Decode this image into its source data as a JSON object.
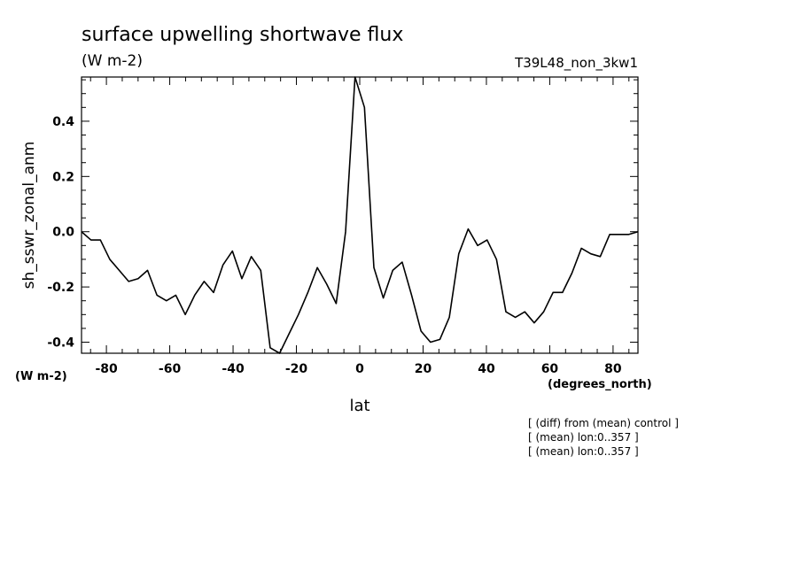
{
  "chart_data": {
    "type": "line",
    "title": "surface upwelling shortwave flux",
    "subtitle": "(W m-2)",
    "run_label": "T39L48_non_3kw1",
    "ylabel": "sh_sswr_zonal_anm",
    "y_units": "(W m-2)",
    "xlabel": "lat",
    "x_units": "(degrees_north)",
    "notes": [
      "[ (diff) from (mean) control ]",
      "[ (mean) lon:0..357 ]",
      "[ (mean) lon:0..357 ]"
    ],
    "x": [
      -87.86,
      -84.88,
      -81.9,
      -78.93,
      -75.95,
      -72.97,
      -69.99,
      -67.01,
      -64.03,
      -61.05,
      -58.08,
      -55.1,
      -52.12,
      -49.14,
      -46.16,
      -43.18,
      -40.21,
      -37.23,
      -34.25,
      -31.27,
      -28.29,
      -25.31,
      -22.34,
      -19.36,
      -16.38,
      -13.4,
      -10.42,
      -7.44,
      -4.47,
      -1.49,
      1.49,
      4.47,
      7.44,
      10.42,
      13.4,
      16.38,
      19.36,
      22.34,
      25.31,
      28.29,
      31.27,
      34.25,
      37.23,
      40.21,
      43.18,
      46.16,
      49.14,
      52.12,
      55.1,
      58.08,
      61.05,
      64.03,
      67.01,
      69.99,
      72.97,
      75.95,
      78.93,
      81.9,
      84.88,
      87.86
    ],
    "series": [
      {
        "color": "#000000",
        "values": [
          0.0,
          -0.03,
          -0.03,
          -0.1,
          -0.14,
          -0.18,
          -0.17,
          -0.14,
          -0.23,
          -0.25,
          -0.23,
          -0.3,
          -0.23,
          -0.18,
          -0.22,
          -0.12,
          -0.07,
          -0.17,
          -0.09,
          -0.14,
          -0.42,
          -0.44,
          -0.37,
          -0.3,
          -0.22,
          -0.13,
          -0.19,
          -0.26,
          0.0,
          0.56,
          0.45,
          -0.13,
          -0.24,
          -0.14,
          -0.11,
          -0.23,
          -0.36,
          -0.4,
          -0.39,
          -0.31,
          -0.08,
          0.01,
          -0.05,
          -0.03,
          -0.1,
          -0.29,
          -0.31,
          -0.29,
          -0.33,
          -0.29,
          -0.22,
          -0.22,
          -0.15,
          -0.06,
          -0.08,
          -0.09,
          -0.01,
          -0.01,
          -0.01,
          0.0
        ]
      }
    ],
    "xlim": [
      -87.86,
      87.86
    ],
    "ylim": [
      -0.44,
      0.56
    ],
    "xticks": [
      -80,
      -60,
      -40,
      -20,
      0,
      20,
      40,
      60,
      80
    ],
    "xminorticks": [
      -85,
      -75,
      -70,
      -65,
      -55,
      -50,
      -45,
      -35,
      -30,
      -25,
      -15,
      -10,
      -5,
      5,
      10,
      15,
      25,
      30,
      35,
      45,
      50,
      55,
      65,
      70,
      75,
      85
    ],
    "yticks": [
      {
        "value": -0.4,
        "label": "-0.4"
      },
      -0.2,
      {
        "value": 0,
        "label": "0.0"
      },
      0.2,
      0.4
    ],
    "yminorticks": [
      -0.35,
      -0.3,
      -0.25,
      -0.15,
      -0.1,
      -0.05,
      0.05,
      0.1,
      0.15,
      0.25,
      0.3,
      0.35,
      0.45,
      0.5,
      0.55
    ]
  }
}
